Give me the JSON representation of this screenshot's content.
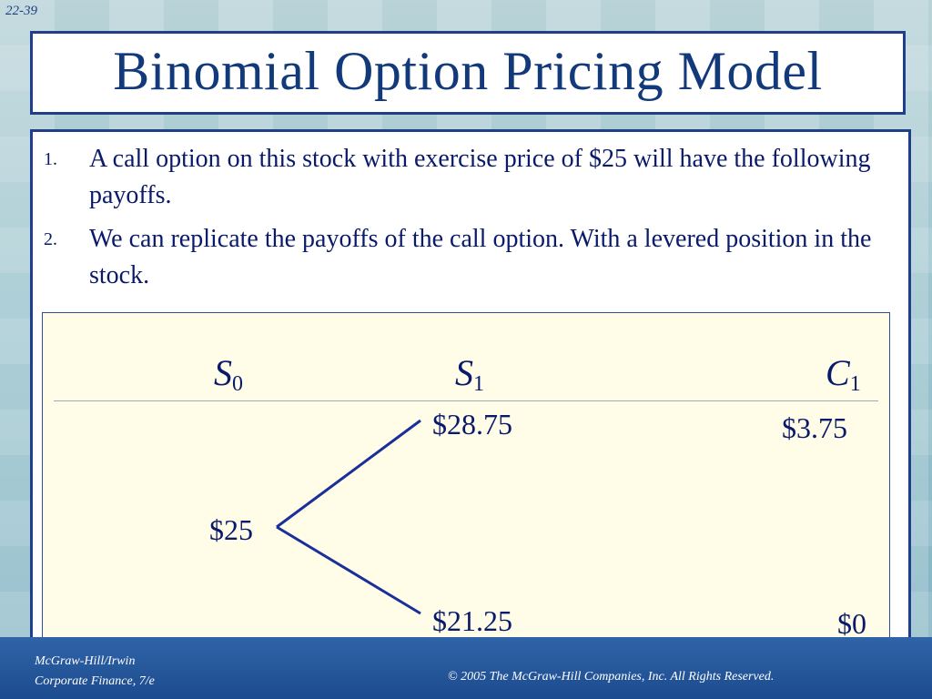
{
  "slide": {
    "number": "22-39",
    "title": "Binomial Option Pricing Model"
  },
  "bullets": [
    {
      "num": "1.",
      "text": "A call option on this stock with exercise price of $25 will have the following payoffs."
    },
    {
      "num": "2.",
      "text": "We can replicate the payoffs of the call option. With a levered position in the stock."
    }
  ],
  "tree": {
    "headers": {
      "s0": {
        "main": "S",
        "sub": "0"
      },
      "s1": {
        "main": "S",
        "sub": "1"
      },
      "c1": {
        "main": "C",
        "sub": "1"
      }
    },
    "s0_value": "$25",
    "s1_up": "$28.75",
    "s1_down": "$21.25",
    "c1_up": "$3.75",
    "c1_down": "$0",
    "line_color": "#1a2f9a"
  },
  "footer": {
    "left_line1": "McGraw-Hill/Irwin",
    "left_line2": "Corporate Finance, 7/e",
    "right": "© 2005  The McGraw-Hill Companies, Inc.  All Rights Reserved."
  }
}
